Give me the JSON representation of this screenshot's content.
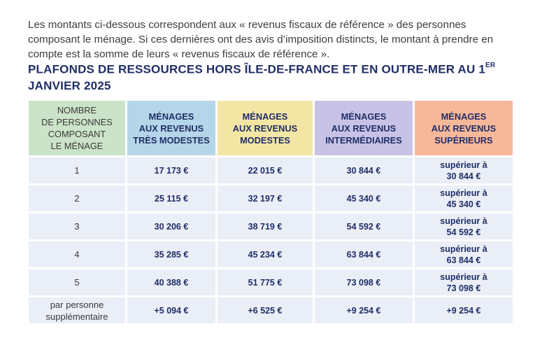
{
  "intro": "Les montants ci-dessous correspondent aux « revenus fiscaux de référence » des personnes composant le ménage. Si ces dernières ont des avis d’imposition distincts, le montant à prendre en compte est la somme de leurs « revenus fiscaux de référence ».",
  "title": {
    "main": "PLAFONDS DE RESSOURCES HORS ÎLE-DE-FRANCE ET EN OUTRE-MER AU 1",
    "sup": "ER",
    "tail": " JANVIER 2025"
  },
  "table": {
    "headers": [
      "NOMBRE\nDE PERSONNES\nCOMPOSANT\nLE MÉNAGE",
      "MÉNAGES\nAUX REVENUS\nTRÈS MODESTES",
      "MÉNAGES\nAUX REVENUS\nMODESTES",
      "MÉNAGES\nAUX REVENUS\nINTERMÉDIAIRES",
      "MÉNAGES\nAUX REVENUS\nSUPÉRIEURS"
    ],
    "rows": [
      {
        "persons": "1",
        "tres_modestes": "17 173 €",
        "modestes": "22 015 €",
        "intermediaires": "30 844 €",
        "superieurs_prefix": "supérieur à",
        "superieurs_value": "30 844 €"
      },
      {
        "persons": "2",
        "tres_modestes": "25 115 €",
        "modestes": "32 197 €",
        "intermediaires": "45 340 €",
        "superieurs_prefix": "supérieur à",
        "superieurs_value": "45 340 €"
      },
      {
        "persons": "3",
        "tres_modestes": "30 206 €",
        "modestes": "38 719 €",
        "intermediaires": "54 592 €",
        "superieurs_prefix": "supérieur à",
        "superieurs_value": "54 592 €"
      },
      {
        "persons": "4",
        "tres_modestes": "35 285 €",
        "modestes": "45 234 €",
        "intermediaires": "63 844 €",
        "superieurs_prefix": "supérieur à",
        "superieurs_value": "63 844 €"
      },
      {
        "persons": "5",
        "tres_modestes": "40 388 €",
        "modestes": "51 775 €",
        "intermediaires": "73 098 €",
        "superieurs_prefix": "supérieur à",
        "superieurs_value": "73 098 €"
      }
    ],
    "extra_row": {
      "label": "par personne\nsupplémentaire",
      "tres_modestes": "+5 094 €",
      "modestes": "+6 525 €",
      "intermediaires": "+9 254 €",
      "superieurs": "+9 254 €"
    }
  },
  "colors": {
    "title": "#1f2e66",
    "col_persons": "#cbe3c8",
    "col_tres_modestes": "#b4d6e8",
    "col_modestes": "#f3e6a4",
    "col_intermediaires": "#c8c3e6",
    "col_superieurs": "#f7b89a",
    "cell_bg": "#eaeef6"
  }
}
